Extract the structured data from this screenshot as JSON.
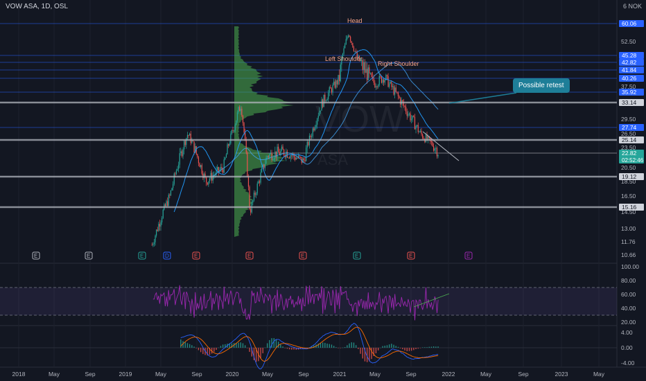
{
  "symbol_line": "VOW ASA, 1D, OSL",
  "currency": "NOK",
  "currency_prefix": "6",
  "watermark_text": "VOW",
  "watermark_sub": "ASA",
  "annotations": {
    "possible_retest": "Possible retest",
    "head": "Head",
    "left_shoulder": "Left Shoulder",
    "right_shoulder": "Right Shoulder"
  },
  "colors": {
    "background": "#131722",
    "grid": "#1e222d",
    "candle_up": "#26a69a",
    "candle_down": "#ef5350",
    "volume_profile": "#4caf50",
    "level_line": "#b2b5be",
    "fib_line": "#2962ff",
    "ma_fast": "#2196f3",
    "ma_slow": "#42a5f5",
    "rsi": "#9c27b0",
    "rsi_band": "#7e57c2",
    "macd_line": "#2962ff",
    "signal_line": "#ff6d00",
    "note_bg": "#1e7e98",
    "price_tag_blue": "#2962ff",
    "price_tag_current": "#26a69a"
  },
  "chart_data": {
    "type": "candlestick",
    "price_axis_labels": [
      "52.50",
      "37.50",
      "29.50",
      "26.50",
      "23.50",
      "20.50",
      "18.50",
      "16.50",
      "14.50",
      "13.00",
      "11.76",
      "10.66"
    ],
    "price_tags": [
      {
        "value": 60.06,
        "style": "blue"
      },
      {
        "value": 45.28,
        "style": "blue"
      },
      {
        "value": 42.82,
        "style": "blue"
      },
      {
        "value": 41.84,
        "style": "blue"
      },
      {
        "value": 40.26,
        "style": "blue"
      },
      {
        "value": 35.92,
        "style": "blue"
      },
      {
        "value": 33.14,
        "style": "gray"
      },
      {
        "value": 27.74,
        "style": "blue"
      },
      {
        "value": 25.14,
        "style": "gray"
      },
      {
        "value": 22.82,
        "style": "current",
        "countdown": "02:52:46"
      },
      {
        "value": 19.12,
        "style": "gray"
      },
      {
        "value": 15.16,
        "style": "gray"
      }
    ],
    "horizontal_levels": [
      33.14,
      25.14,
      19.12,
      15.16
    ],
    "time_axis_labels": [
      "2018",
      "May",
      "Sep",
      "2019",
      "May",
      "Sep",
      "2020",
      "May",
      "Sep",
      "2021",
      "May",
      "Sep",
      "2022",
      "May",
      "Sep",
      "2023",
      "May"
    ],
    "event_markers": [
      "E",
      "E",
      "E",
      "D",
      "E",
      "E",
      "E",
      "E",
      "E",
      "E"
    ],
    "rsi_axis_labels": [
      "100.00",
      "80.00",
      "60.00",
      "40.00",
      "20.00"
    ],
    "rsi_band": [
      70,
      30
    ],
    "macd_axis_labels": [
      "4.00",
      "0.00",
      "-4.00"
    ],
    "price_series_approx": {
      "x": [
        "2019-04",
        "2019-06",
        "2019-08",
        "2019-10",
        "2019-12",
        "2020-02",
        "2020-03",
        "2020-05",
        "2020-07",
        "2020-09",
        "2020-11",
        "2021-01",
        "2021-02",
        "2021-03",
        "2021-05",
        "2021-06",
        "2021-08",
        "2021-10",
        "2021-12"
      ],
      "close": [
        11.5,
        16.5,
        26.5,
        18.5,
        20.5,
        33.0,
        14.5,
        22.5,
        23.0,
        21.5,
        33.0,
        40.0,
        57.0,
        44.0,
        38.5,
        40.5,
        33.0,
        26.5,
        22.8
      ]
    }
  }
}
